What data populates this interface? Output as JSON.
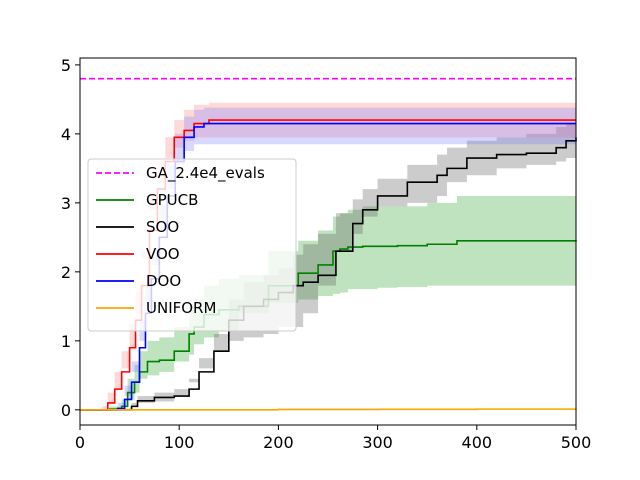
{
  "chart_data": {
    "type": "line",
    "title": "",
    "xlabel": "",
    "ylabel": "",
    "xlim": [
      0,
      500
    ],
    "ylim": [
      -0.22,
      5.1
    ],
    "xticks": [
      0,
      100,
      200,
      300,
      400,
      500
    ],
    "yticks": [
      0,
      1,
      2,
      3,
      4,
      5
    ],
    "grid": false,
    "legend_position": "center-left",
    "series": [
      {
        "name": "GA_2.4e4_evals",
        "color": "#ff00ff",
        "style": "dashed",
        "x": [
          0,
          500
        ],
        "y": [
          4.8,
          4.8
        ]
      },
      {
        "name": "GPUCB",
        "color": "#008000",
        "style": "solid",
        "x": [
          0,
          30,
          42,
          48,
          55,
          60,
          68,
          80,
          95,
          110,
          115,
          125,
          140,
          160,
          190,
          220,
          240,
          255,
          262,
          270,
          285,
          300,
          320,
          350,
          380,
          400,
          450,
          500
        ],
        "y": [
          0,
          0.01,
          0.05,
          0.25,
          0.4,
          0.55,
          0.7,
          0.72,
          0.85,
          1.1,
          1.2,
          1.38,
          1.45,
          1.5,
          1.8,
          1.98,
          2.1,
          2.3,
          2.33,
          2.36,
          2.37,
          2.37,
          2.38,
          2.4,
          2.45,
          2.45,
          2.45,
          2.46
        ],
        "band_low": [
          0,
          0.0,
          0.0,
          0.05,
          0.15,
          0.25,
          0.45,
          0.5,
          0.55,
          0.7,
          0.8,
          0.95,
          1.05,
          1.15,
          1.4,
          1.55,
          1.6,
          1.65,
          1.68,
          1.7,
          1.75,
          1.75,
          1.77,
          1.78,
          1.8,
          1.8,
          1.8,
          1.8
        ],
        "band_high": [
          0,
          0.05,
          0.15,
          0.45,
          0.65,
          0.85,
          1.0,
          1.05,
          1.2,
          1.5,
          1.6,
          1.8,
          1.9,
          1.95,
          2.3,
          2.45,
          2.6,
          2.8,
          2.85,
          2.9,
          2.95,
          2.95,
          2.95,
          3.0,
          3.1,
          3.1,
          3.1,
          3.12
        ]
      },
      {
        "name": "SOO",
        "color": "#000000",
        "style": "solid",
        "x": [
          0,
          40,
          52,
          58,
          75,
          95,
          110,
          120,
          135,
          150,
          165,
          185,
          200,
          215,
          225,
          240,
          258,
          275,
          285,
          300,
          330,
          360,
          370,
          390,
          420,
          450,
          480,
          490,
          500
        ],
        "y": [
          0,
          0.0,
          0.05,
          0.13,
          0.18,
          0.2,
          0.3,
          0.55,
          0.85,
          1.3,
          1.5,
          1.6,
          1.7,
          1.8,
          1.85,
          1.95,
          2.3,
          2.7,
          2.9,
          3.1,
          3.3,
          3.4,
          3.5,
          3.65,
          3.7,
          3.72,
          3.8,
          3.9,
          3.95
        ],
        "band_low": [
          0,
          0.0,
          0.0,
          0.05,
          0.1,
          0.12,
          0.2,
          0.4,
          0.6,
          0.85,
          1.0,
          1.05,
          1.1,
          1.2,
          1.2,
          1.4,
          1.8,
          2.3,
          2.55,
          2.8,
          2.95,
          3.0,
          3.1,
          3.3,
          3.4,
          3.5,
          3.55,
          3.6,
          3.65
        ],
        "band_high": [
          0,
          0.02,
          0.1,
          0.2,
          0.25,
          0.3,
          0.45,
          0.75,
          1.1,
          1.6,
          1.85,
          1.95,
          2.05,
          2.25,
          2.4,
          2.55,
          2.85,
          3.05,
          3.2,
          3.35,
          3.55,
          3.7,
          3.8,
          3.9,
          3.95,
          4.0,
          4.1,
          4.15,
          4.2
        ]
      },
      {
        "name": "VOO",
        "color": "#ff0000",
        "style": "solid",
        "x": [
          0,
          22,
          28,
          35,
          42,
          50,
          56,
          62,
          70,
          78,
          86,
          95,
          105,
          115,
          130,
          500
        ],
        "y": [
          0,
          0.0,
          0.1,
          0.3,
          0.55,
          0.9,
          1.3,
          1.8,
          2.6,
          3.2,
          3.6,
          3.95,
          4.05,
          4.15,
          4.2,
          4.2
        ],
        "band_low": [
          0,
          0.0,
          0.0,
          0.1,
          0.3,
          0.6,
          0.9,
          1.4,
          2.2,
          2.9,
          3.3,
          3.65,
          3.8,
          3.9,
          3.95,
          3.95
        ],
        "band_high": [
          0,
          0.05,
          0.25,
          0.55,
          0.85,
          1.25,
          1.7,
          2.3,
          3.1,
          3.6,
          3.95,
          4.2,
          4.35,
          4.42,
          4.45,
          4.45
        ]
      },
      {
        "name": "DOO",
        "color": "#0000ff",
        "style": "solid",
        "x": [
          0,
          32,
          38,
          45,
          52,
          60,
          66,
          72,
          80,
          88,
          96,
          105,
          115,
          125,
          500
        ],
        "y": [
          0,
          0.0,
          0.02,
          0.15,
          0.4,
          0.9,
          1.4,
          1.9,
          2.5,
          3.1,
          3.6,
          3.95,
          4.1,
          4.15,
          4.15
        ],
        "band_low": [
          0,
          0.0,
          0.0,
          0.05,
          0.2,
          0.55,
          1.0,
          1.5,
          2.1,
          2.7,
          3.2,
          3.55,
          3.75,
          3.85,
          3.85
        ],
        "band_high": [
          0,
          0.02,
          0.1,
          0.35,
          0.7,
          1.3,
          1.8,
          2.35,
          2.95,
          3.55,
          4.0,
          4.25,
          4.35,
          4.38,
          4.38
        ]
      },
      {
        "name": "UNIFORM",
        "color": "#ffa500",
        "style": "solid",
        "x": [
          0,
          100,
          200,
          300,
          400,
          500
        ],
        "y": [
          0,
          0.0,
          0.005,
          0.007,
          0.01,
          0.015
        ],
        "band_low": [
          0,
          0.0,
          0.0,
          0.0,
          0.0,
          0.0
        ],
        "band_high": [
          0,
          0.01,
          0.015,
          0.02,
          0.025,
          0.03
        ]
      }
    ],
    "bands": {
      "GPUCB": "#2ca02c",
      "SOO": "#555555",
      "VOO": "#ff7f7f",
      "DOO": "#7f7fff",
      "UNIFORM": "#ffd480"
    }
  }
}
